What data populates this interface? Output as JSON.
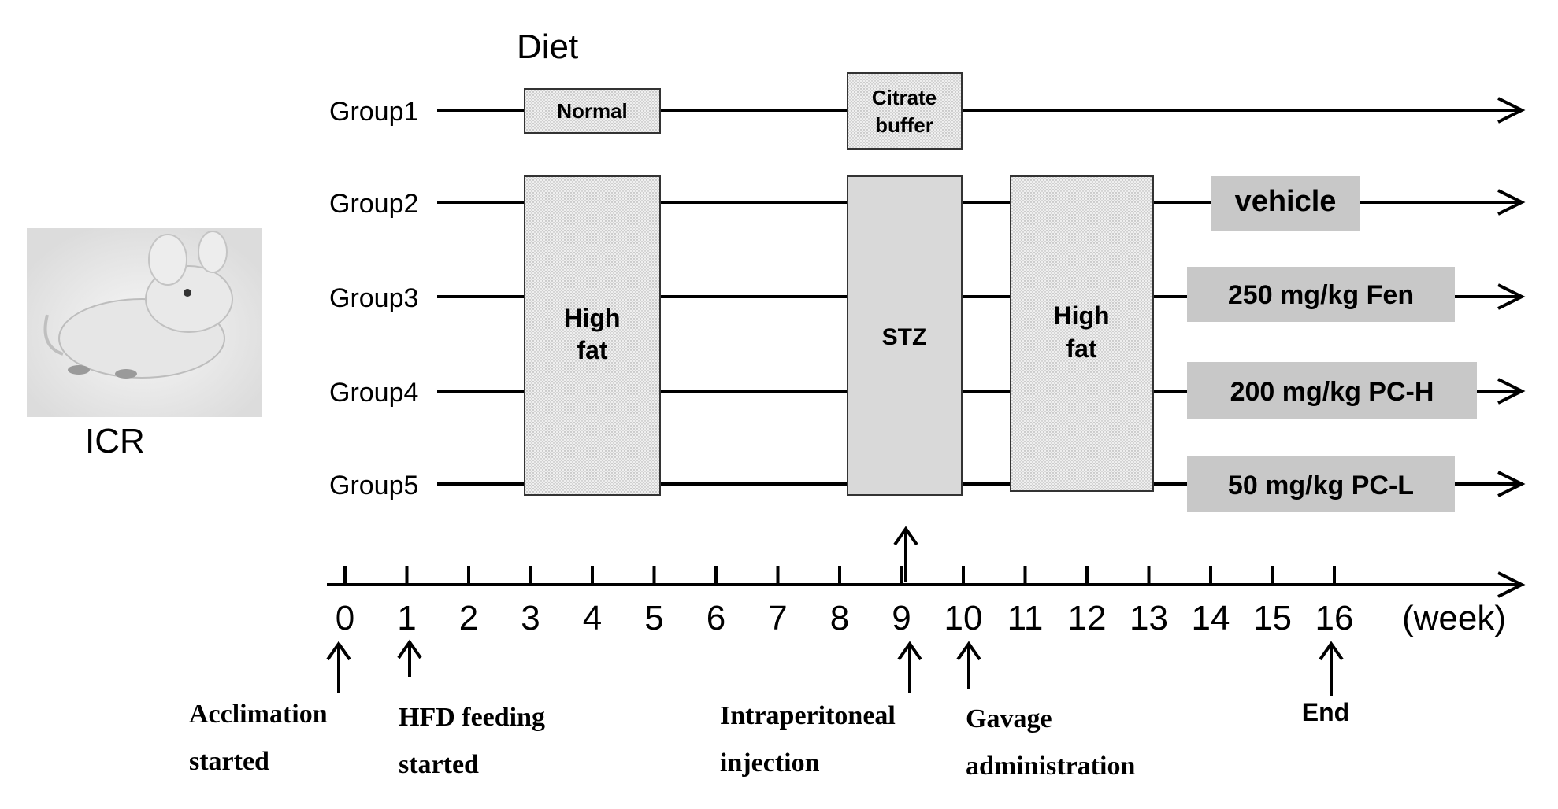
{
  "header": {
    "diet_label": "Diet"
  },
  "mouse": {
    "strain_label": "ICR",
    "icon": "mouse-photo"
  },
  "groups": [
    {
      "label": "Group1"
    },
    {
      "label": "Group2"
    },
    {
      "label": "Group3"
    },
    {
      "label": "Group4"
    },
    {
      "label": "Group5"
    }
  ],
  "boxes": {
    "normal": "Normal",
    "citrate_line1": "Citrate",
    "citrate_line2": "buffer",
    "highfat1_line1": "High",
    "highfat1_line2": "fat",
    "stz": "STZ",
    "highfat2_line1": "High",
    "highfat2_line2": "fat"
  },
  "treatments": {
    "group2": "vehicle",
    "group3": "250 mg/kg Fen",
    "group4": "200 mg/kg PC-H",
    "group5": "50 mg/kg PC-L"
  },
  "axis": {
    "ticks": [
      "0",
      "1",
      "2",
      "3",
      "4",
      "5",
      "6",
      "7",
      "8",
      "9",
      "10",
      "11",
      "12",
      "13",
      "14",
      "15",
      "16"
    ],
    "unit": "(week)"
  },
  "events": {
    "acclimation_l1": "Acclimation",
    "acclimation_l2": "started",
    "hfd_l1": "HFD feeding",
    "hfd_l2": "started",
    "ip_l1": "Intraperitoneal",
    "ip_l2": "injection",
    "gavage_l1": "Gavage",
    "gavage_l2": "administration",
    "end": "End"
  },
  "colors": {
    "line": "#000000",
    "box_fill": "#e8e8e8",
    "treatment_fill": "#c8c8c8",
    "stz_fill": "#d9d9d9"
  }
}
